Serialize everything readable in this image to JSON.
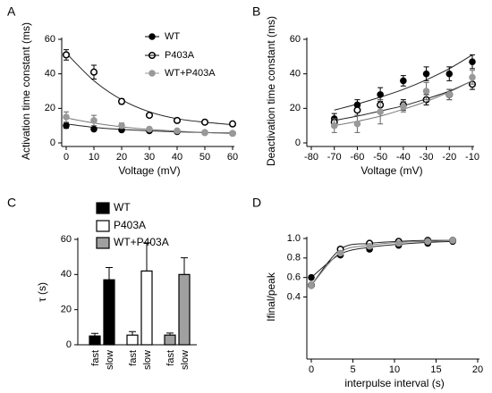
{
  "chart_data": [
    {
      "panel": "A",
      "type": "scatter",
      "xlabel": "Voltage (mV)",
      "ylabel": "Activation time constant (ms)",
      "xlim": [
        0,
        60
      ],
      "ylim": [
        0,
        60
      ],
      "xticks": [
        0,
        10,
        20,
        30,
        40,
        50,
        60
      ],
      "yticks": [
        0,
        20,
        40,
        60
      ],
      "legend": true,
      "x": [
        0,
        10,
        20,
        30,
        40,
        50,
        60
      ],
      "series": [
        {
          "name": "WT",
          "color": "#000000",
          "marker": "filled",
          "values": [
            10,
            8,
            7.5,
            7,
            6.5,
            6,
            5.5
          ],
          "errors": [
            1.5,
            1,
            1,
            0.8,
            0.8,
            0.6,
            0.5
          ],
          "fit": [
            11,
            9,
            7.8,
            7,
            6.4,
            6,
            5.7
          ]
        },
        {
          "name": "P403A",
          "color": "#000000",
          "marker": "open",
          "values": [
            51,
            41,
            24,
            16,
            13,
            12,
            11
          ],
          "errors": [
            3,
            4,
            1.5,
            1,
            1,
            0.8,
            0.8
          ],
          "fit": [
            52,
            36,
            25,
            18,
            14,
            12,
            10.5
          ]
        },
        {
          "name": "WT+P403A",
          "color": "#999999",
          "marker": "filled",
          "values": [
            15,
            13,
            10,
            8,
            7,
            6,
            5.5
          ],
          "errors": [
            3,
            3,
            1.5,
            1,
            0.8,
            0.6,
            0.5
          ],
          "fit": [
            14.5,
            11.5,
            9.3,
            7.8,
            6.8,
            6,
            5.4
          ]
        }
      ]
    },
    {
      "panel": "B",
      "type": "scatter",
      "xlabel": "Voltage (mV)",
      "ylabel": "Deactivation time constant (ms)",
      "xlim": [
        -80,
        -10
      ],
      "ylim": [
        0,
        60
      ],
      "xticks": [
        -80,
        -70,
        -60,
        -50,
        -40,
        -30,
        -20,
        -10
      ],
      "yticks": [
        0,
        20,
        40,
        60
      ],
      "legend": false,
      "x": [
        -70,
        -60,
        -50,
        -40,
        -30,
        -20,
        -10
      ],
      "series": [
        {
          "name": "WT",
          "color": "#000000",
          "marker": "filled",
          "values": [
            14,
            22,
            28,
            36,
            40,
            40,
            47
          ],
          "errors": [
            3,
            3,
            4,
            3,
            4,
            4,
            4
          ],
          "fit": [
            19,
            22.5,
            26.5,
            31,
            36.5,
            43,
            51
          ]
        },
        {
          "name": "P403A",
          "color": "#000000",
          "marker": "open",
          "values": [
            12,
            19,
            22,
            22,
            25,
            28,
            34
          ],
          "errors": [
            3,
            3,
            3,
            3,
            3,
            3,
            3
          ],
          "fit": [
            13,
            15.5,
            18.5,
            21.5,
            25.5,
            30,
            36
          ]
        },
        {
          "name": "WT+P403A",
          "color": "#999999",
          "marker": "filled",
          "values": [
            10,
            11,
            18,
            21,
            30,
            28,
            38
          ],
          "errors": [
            4,
            5,
            7,
            3,
            5,
            3,
            4
          ],
          "fit": [
            10,
            12.5,
            15.5,
            19.5,
            24,
            29.5,
            36
          ]
        }
      ]
    },
    {
      "panel": "C",
      "type": "bar",
      "ylabel": "τ (s)",
      "ylim": [
        0,
        60
      ],
      "yticks": [
        0,
        20,
        40,
        60
      ],
      "legend": true,
      "categories": [
        "fast",
        "slow"
      ],
      "series": [
        {
          "name": "WT",
          "color": "#000000",
          "values": [
            5,
            37
          ],
          "errors": [
            1.5,
            7
          ]
        },
        {
          "name": "P403A",
          "color": "#ffffff",
          "values": [
            5.5,
            42
          ],
          "errors": [
            2,
            16
          ]
        },
        {
          "name": "WT+P403A",
          "color": "#a0a0a0",
          "values": [
            5.5,
            40
          ],
          "errors": [
            1.2,
            9.5
          ]
        }
      ]
    },
    {
      "panel": "D",
      "type": "scatter",
      "xlabel": "interpulse interval (s)",
      "ylabel": "Ifinal/peak",
      "xlim": [
        0,
        20
      ],
      "ylim": [
        -0.2,
        1.0
      ],
      "xticks": [
        0,
        5,
        10,
        15,
        20
      ],
      "yticks": [
        0.4,
        0.6,
        0.8,
        {
          "value": 1.0,
          "label": "1.0"
        }
      ],
      "legend": false,
      "x": [
        0,
        3.5,
        7,
        10.5,
        14,
        17
      ],
      "series": [
        {
          "name": "WT",
          "color": "#000000",
          "marker": "filled",
          "values": [
            0.6,
            0.83,
            0.89,
            0.93,
            0.95,
            0.97
          ],
          "fit": [
            0.6,
            0.84,
            0.91,
            0.94,
            0.96,
            0.97
          ]
        },
        {
          "name": "P403A",
          "color": "#000000",
          "marker": "open",
          "values": [
            0.52,
            0.89,
            0.95,
            0.97,
            0.98,
            0.98
          ],
          "fit": [
            0.52,
            0.89,
            0.95,
            0.97,
            0.98,
            0.98
          ]
        },
        {
          "name": "WT+P403A",
          "color": "#999999",
          "marker": "filled",
          "values": [
            0.52,
            0.85,
            0.92,
            0.95,
            0.97,
            0.98
          ],
          "fit": [
            0.52,
            0.86,
            0.93,
            0.96,
            0.97,
            0.98
          ]
        }
      ]
    }
  ]
}
